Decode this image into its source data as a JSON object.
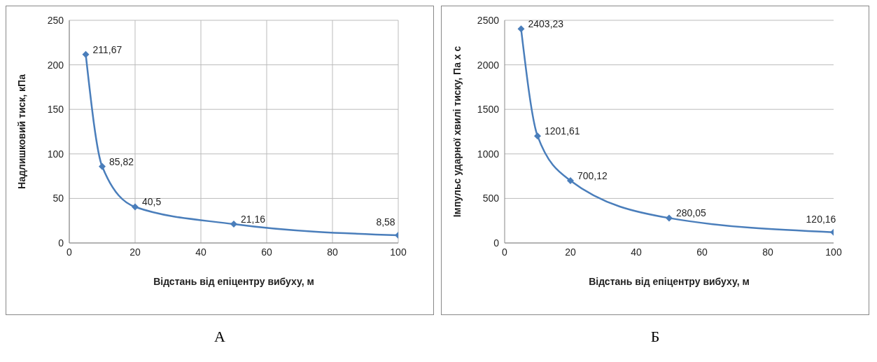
{
  "chart_data": [
    {
      "type": "line",
      "x": [
        5,
        10,
        20,
        50,
        100
      ],
      "series": [
        {
          "color": "#4a7ebb",
          "values": [
            211.67,
            85.82,
            40.5,
            21.16,
            8.58
          ],
          "value_labels": [
            "211,67",
            "85,82",
            "40,5",
            "21,16",
            "8,58"
          ]
        }
      ],
      "xlabel": "Відстань від епіцентру вибуху, м",
      "ylabel": "Надлишковий тиск, кПа",
      "xlim": [
        0,
        100
      ],
      "xticks": [
        0,
        20,
        40,
        60,
        80,
        100
      ],
      "ylim": [
        0,
        250
      ],
      "yticks": [
        0,
        50,
        100,
        150,
        200,
        250
      ],
      "grid": true,
      "marker": "diamond",
      "line_style": "solid",
      "annotations": [
        "А"
      ]
    },
    {
      "type": "line",
      "x": [
        5,
        10,
        20,
        50,
        100
      ],
      "series": [
        {
          "color": "#4a7ebb",
          "values": [
            2403.23,
            1201.61,
            700.12,
            280.05,
            120.16
          ],
          "value_labels": [
            "2403,23",
            "1201,61",
            "700,12",
            "280,05",
            "120,16"
          ]
        }
      ],
      "xlabel": "Відстань від епіцентру вибуху, м",
      "ylabel": "Імпульс ударної хвилі тиску, Па х с",
      "xlim": [
        0,
        100
      ],
      "xticks": [
        0,
        20,
        40,
        60,
        80,
        100
      ],
      "ylim": [
        0,
        2500
      ],
      "yticks": [
        0,
        500,
        1000,
        1500,
        2000,
        2500
      ],
      "grid": "y",
      "marker": "diamond",
      "line_style": "solid",
      "annotations": [
        "Б"
      ]
    }
  ]
}
